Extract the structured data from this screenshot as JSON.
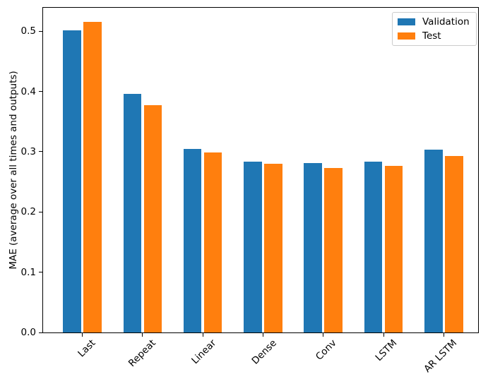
{
  "chart_data": {
    "type": "bar",
    "title": "",
    "xlabel": "",
    "ylabel": "MAE (average over all times and outputs)",
    "categories": [
      "Last",
      "Repeat",
      "Linear",
      "Dense",
      "Conv",
      "LSTM",
      "AR LSTM"
    ],
    "series": [
      {
        "name": "Validation",
        "color": "#1f77b4",
        "values": [
          0.501,
          0.396,
          0.305,
          0.284,
          0.281,
          0.284,
          0.304
        ]
      },
      {
        "name": "Test",
        "color": "#ff7f0e",
        "values": [
          0.516,
          0.377,
          0.299,
          0.28,
          0.273,
          0.277,
          0.293
        ]
      }
    ],
    "yticks": [
      0.0,
      0.1,
      0.2,
      0.3,
      0.4,
      0.5
    ],
    "ytick_format_decimals": 1,
    "ylim": [
      0,
      0.539
    ],
    "bar_width_data": 0.3,
    "bar_offset_data": 0.17,
    "xtick_rotation_deg": 45,
    "grid": false,
    "legend": {
      "position": "upper right",
      "entries": [
        "Validation",
        "Test"
      ]
    },
    "axis_color": "#000000",
    "background_color": "#ffffff"
  }
}
